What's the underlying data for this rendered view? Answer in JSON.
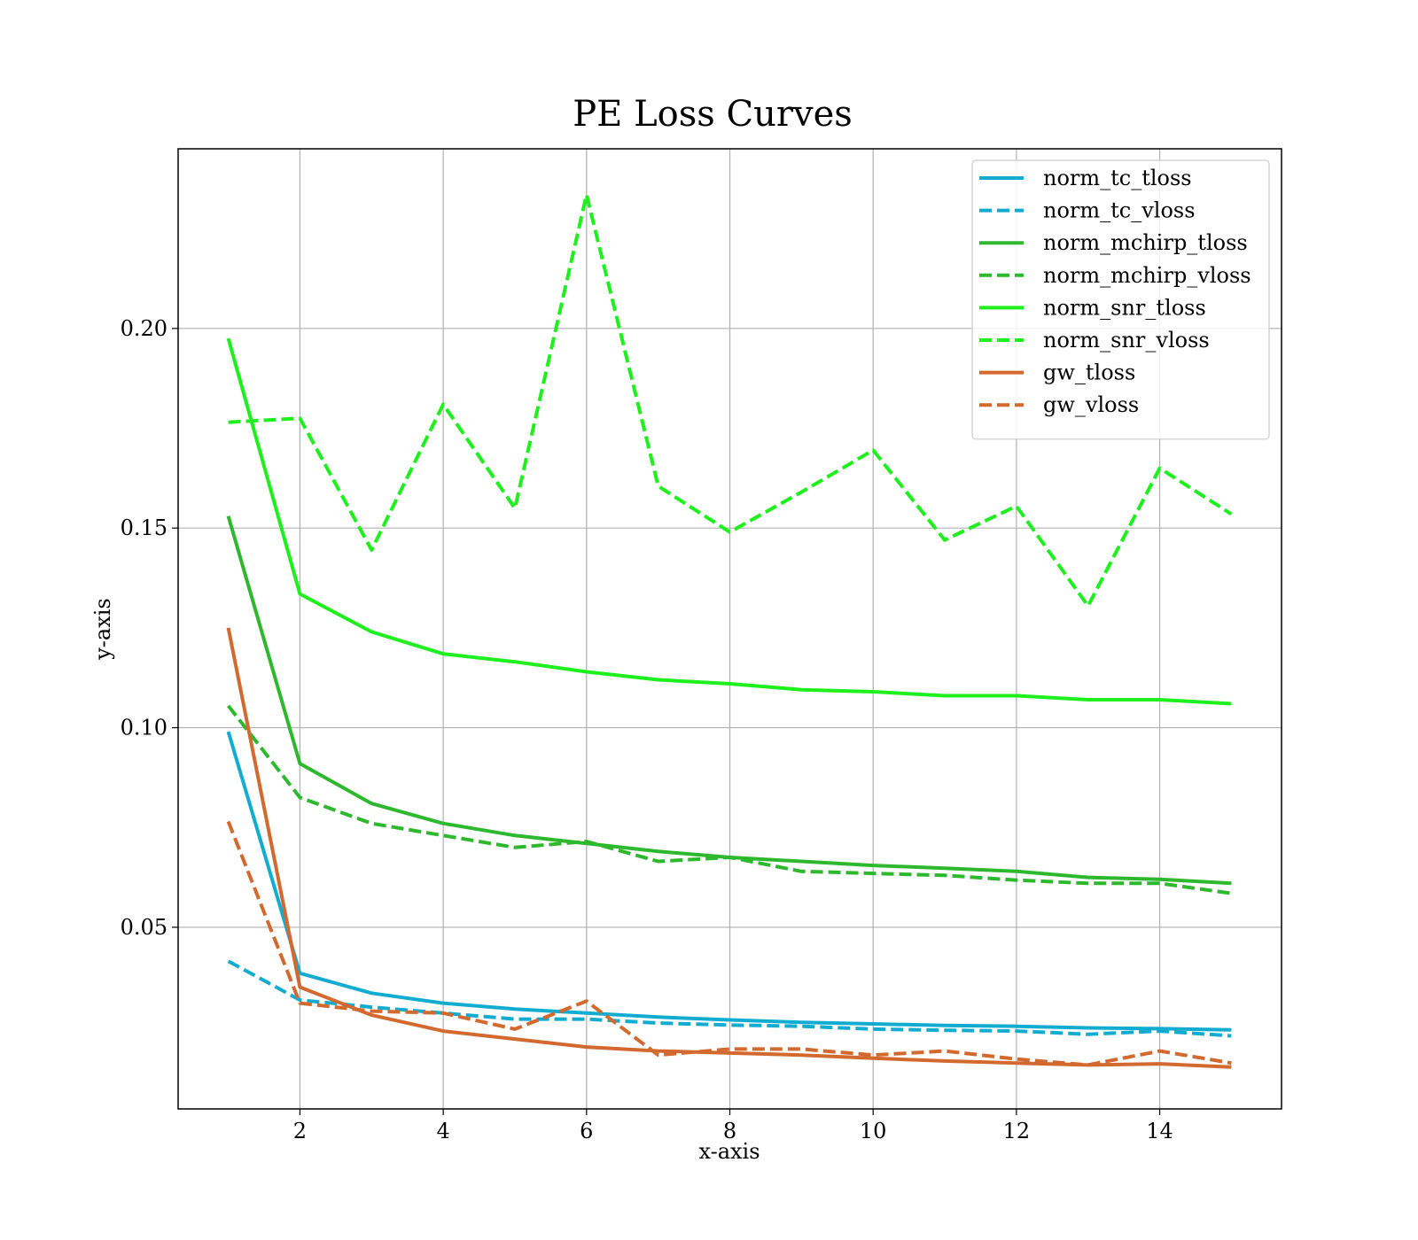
{
  "chart_data": {
    "type": "line",
    "title": "PE Loss Curves",
    "xlabel": "x-axis",
    "ylabel": "y-axis",
    "xlim": [
      0.3,
      15.7
    ],
    "ylim": [
      0.0045,
      0.245
    ],
    "xticks": [
      2,
      4,
      6,
      8,
      10,
      12,
      14
    ],
    "xtick_labels": [
      "2",
      "4",
      "6",
      "8",
      "10",
      "12",
      "14"
    ],
    "yticks": [
      0.05,
      0.1,
      0.15,
      0.2
    ],
    "ytick_labels": [
      "0.05",
      "0.10",
      "0.15",
      "0.20"
    ],
    "grid": true,
    "legend_position": "upper right",
    "x": [
      1,
      2,
      3,
      4,
      5,
      6,
      7,
      8,
      9,
      10,
      11,
      12,
      13,
      14,
      15
    ],
    "series": [
      {
        "name": "norm_tc_tloss",
        "color": "#12acd0",
        "dash": "solid",
        "values": [
          0.099,
          0.0385,
          0.0335,
          0.031,
          0.0295,
          0.0285,
          0.0275,
          0.0268,
          0.0262,
          0.0258,
          0.0254,
          0.0252,
          0.0248,
          0.0246,
          0.0243
        ]
      },
      {
        "name": "norm_tc_vloss",
        "color": "#12acd0",
        "dash": "dashed",
        "values": [
          0.0415,
          0.0318,
          0.03,
          0.0285,
          0.027,
          0.027,
          0.026,
          0.0255,
          0.0252,
          0.0245,
          0.0242,
          0.024,
          0.0232,
          0.024,
          0.0228
        ]
      },
      {
        "name": "norm_mchirp_tloss",
        "color": "#2eb82e",
        "dash": "solid",
        "values": [
          0.153,
          0.091,
          0.081,
          0.076,
          0.073,
          0.071,
          0.069,
          0.0675,
          0.0665,
          0.0655,
          0.0648,
          0.064,
          0.0625,
          0.062,
          0.061
        ]
      },
      {
        "name": "norm_mchirp_vloss",
        "color": "#2eb82e",
        "dash": "dashed",
        "values": [
          0.1055,
          0.0825,
          0.076,
          0.073,
          0.07,
          0.0715,
          0.0665,
          0.0675,
          0.064,
          0.0635,
          0.063,
          0.0618,
          0.061,
          0.061,
          0.0585
        ]
      },
      {
        "name": "norm_snr_tloss",
        "color": "#1ef01e",
        "dash": "solid",
        "values": [
          0.1975,
          0.1335,
          0.124,
          0.1185,
          0.1165,
          0.114,
          0.112,
          0.111,
          0.1095,
          0.109,
          0.108,
          0.108,
          0.107,
          0.107,
          0.106
        ]
      },
      {
        "name": "norm_snr_vloss",
        "color": "#1ef01e",
        "dash": "dashed",
        "values": [
          0.1765,
          0.1775,
          0.1445,
          0.181,
          0.155,
          0.2335,
          0.1605,
          0.149,
          0.159,
          0.1695,
          0.147,
          0.1555,
          0.1305,
          0.165,
          0.1535
        ]
      },
      {
        "name": "gw_tloss",
        "color": "#d2692e",
        "dash": "solid",
        "values": [
          0.125,
          0.035,
          0.028,
          0.024,
          0.022,
          0.02,
          0.019,
          0.0185,
          0.018,
          0.0172,
          0.0165,
          0.016,
          0.0155,
          0.0158,
          0.015
        ]
      },
      {
        "name": "gw_vloss",
        "color": "#d2692e",
        "dash": "dashed",
        "values": [
          0.0765,
          0.031,
          0.029,
          0.0285,
          0.0245,
          0.0315,
          0.018,
          0.0195,
          0.0195,
          0.018,
          0.019,
          0.017,
          0.0155,
          0.019,
          0.016
        ]
      }
    ]
  }
}
